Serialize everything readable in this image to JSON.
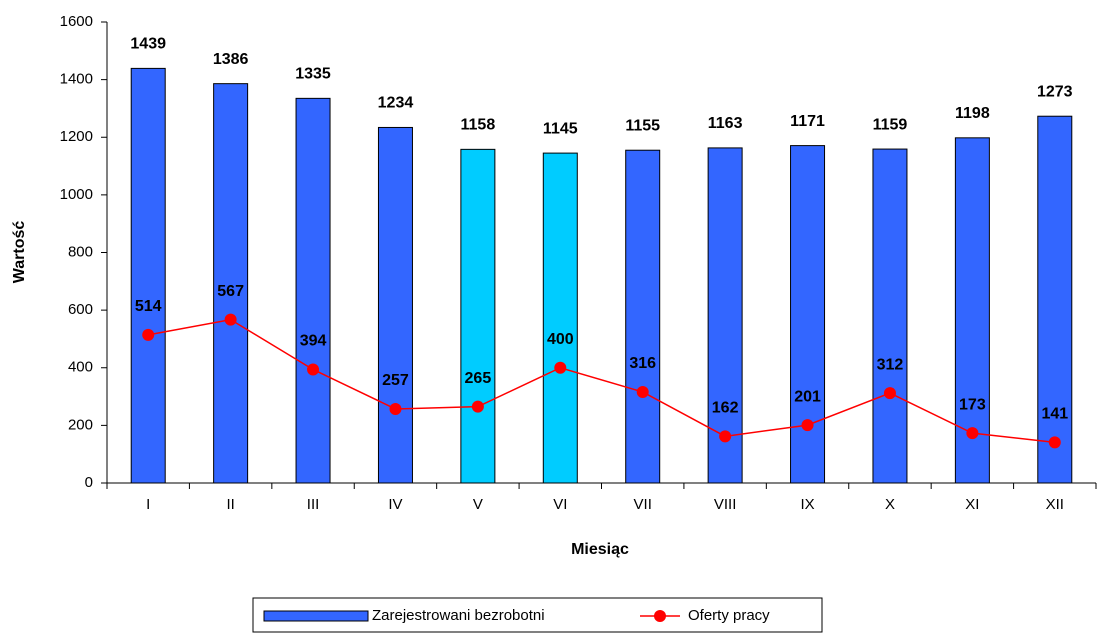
{
  "chart_data": {
    "type": "bar",
    "categories": [
      "I",
      "II",
      "III",
      "IV",
      "V",
      "VI",
      "VII",
      "VIII",
      "IX",
      "X",
      "XI",
      "XII"
    ],
    "series": [
      {
        "name": "Zarejestrowani bezrobotni",
        "type": "bar",
        "color": "#3366ff",
        "colors": [
          "#3366ff",
          "#3366ff",
          "#3366ff",
          "#3366ff",
          "#00ccff",
          "#00ccff",
          "#3366ff",
          "#3366ff",
          "#3366ff",
          "#3366ff",
          "#3366ff",
          "#3366ff"
        ],
        "values": [
          1439,
          1386,
          1335,
          1234,
          1158,
          1145,
          1155,
          1163,
          1171,
          1159,
          1198,
          1273
        ]
      },
      {
        "name": "Oferty pracy",
        "type": "line",
        "color": "#ff0000",
        "values": [
          514,
          567,
          394,
          257,
          265,
          400,
          316,
          162,
          201,
          312,
          173,
          141
        ]
      }
    ],
    "xlabel": "Miesiąc",
    "ylabel": "Wartość",
    "ylim": [
      0,
      1600
    ],
    "yticks": [
      0,
      200,
      400,
      600,
      800,
      1000,
      1200,
      1400,
      1600
    ],
    "grid": false,
    "legend": "bottom"
  }
}
